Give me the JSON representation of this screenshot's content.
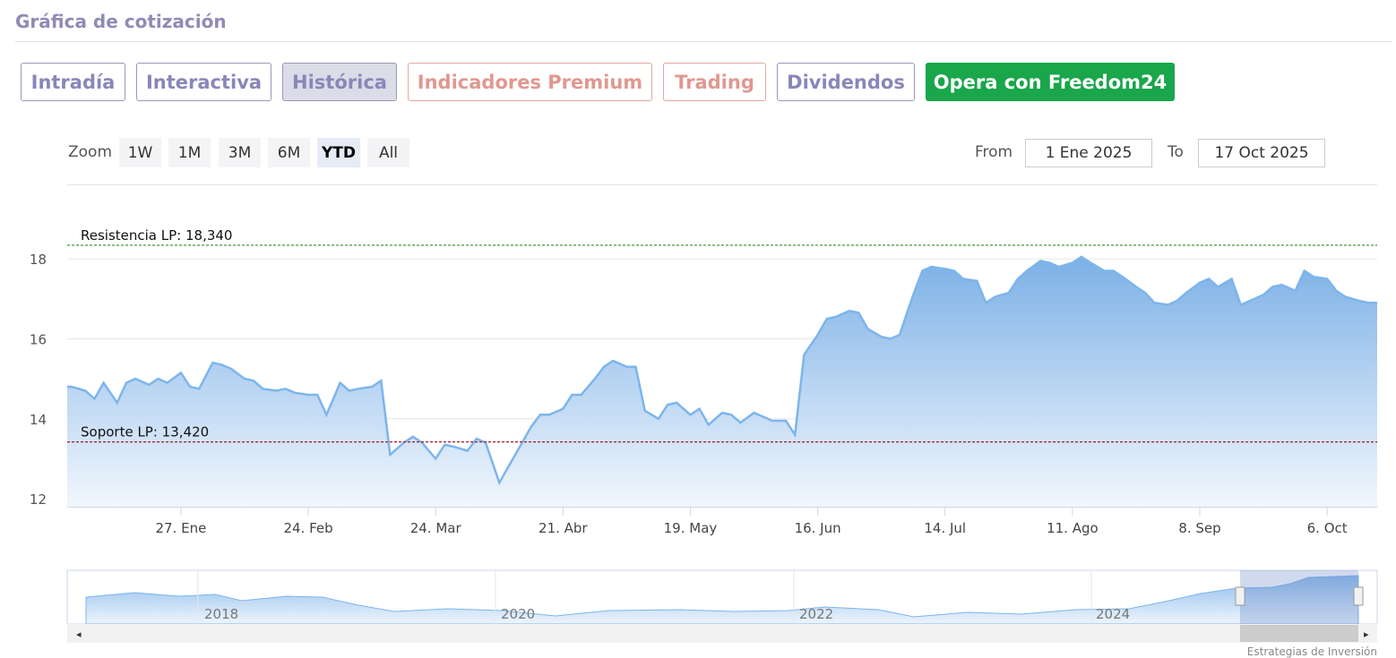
{
  "header": {
    "title": "Gráfica de cotización"
  },
  "tabs": [
    "Intradía",
    "Interactiva",
    "Histórica",
    "Indicadores Premium",
    "Trading",
    "Dividendos",
    "Opera con Freedom24"
  ],
  "zoom": {
    "label": "Zoom",
    "buttons": [
      "1W",
      "1M",
      "3M",
      "6M",
      "YTD",
      "All"
    ]
  },
  "range": {
    "from_label": "From",
    "from": "1 Ene 2025",
    "to_label": "To",
    "to": "17 Oct 2025"
  },
  "navigator": {
    "labels": [
      "2018",
      "2020",
      "2022",
      "2024"
    ]
  },
  "credit": "Estrategias de Inversión",
  "chart_data": {
    "type": "area",
    "color": "#7cb5ec",
    "x": [
      "2025-01-02",
      "2025-01-03",
      "2025-01-06",
      "2025-01-08",
      "2025-01-10",
      "2025-01-13",
      "2025-01-15",
      "2025-01-17",
      "2025-01-20",
      "2025-01-22",
      "2025-01-24",
      "2025-01-27",
      "2025-01-29",
      "2025-01-31",
      "2025-02-03",
      "2025-02-05",
      "2025-02-07",
      "2025-02-10",
      "2025-02-12",
      "2025-02-14",
      "2025-02-17",
      "2025-02-19",
      "2025-02-21",
      "2025-02-24",
      "2025-02-26",
      "2025-02-28",
      "2025-03-03",
      "2025-03-05",
      "2025-03-07",
      "2025-03-10",
      "2025-03-12",
      "2025-03-14",
      "2025-03-17",
      "2025-03-19",
      "2025-03-21",
      "2025-03-24",
      "2025-03-26",
      "2025-03-28",
      "2025-03-31",
      "2025-04-02",
      "2025-04-04",
      "2025-04-07",
      "2025-04-09",
      "2025-04-11",
      "2025-04-14",
      "2025-04-16",
      "2025-04-18",
      "2025-04-21",
      "2025-04-23",
      "2025-04-25",
      "2025-04-28",
      "2025-04-30",
      "2025-05-02",
      "2025-05-05",
      "2025-05-07",
      "2025-05-09",
      "2025-05-12",
      "2025-05-14",
      "2025-05-16",
      "2025-05-19",
      "2025-05-21",
      "2025-05-23",
      "2025-05-26",
      "2025-05-28",
      "2025-05-30",
      "2025-06-02",
      "2025-06-04",
      "2025-06-06",
      "2025-06-09",
      "2025-06-11",
      "2025-06-13",
      "2025-06-16",
      "2025-06-18",
      "2025-06-20",
      "2025-06-23",
      "2025-06-25",
      "2025-06-27",
      "2025-06-30",
      "2025-07-02",
      "2025-07-04",
      "2025-07-07",
      "2025-07-09",
      "2025-07-11",
      "2025-07-14",
      "2025-07-16",
      "2025-07-18",
      "2025-07-21",
      "2025-07-23",
      "2025-07-25",
      "2025-07-28",
      "2025-07-30",
      "2025-08-01",
      "2025-08-04",
      "2025-08-06",
      "2025-08-08",
      "2025-08-11",
      "2025-08-13",
      "2025-08-15",
      "2025-08-18",
      "2025-08-20",
      "2025-08-22",
      "2025-08-25",
      "2025-08-27",
      "2025-08-29",
      "2025-09-01",
      "2025-09-03",
      "2025-09-05",
      "2025-09-08",
      "2025-09-10",
      "2025-09-12",
      "2025-09-15",
      "2025-09-17",
      "2025-09-19",
      "2025-09-22",
      "2025-09-24",
      "2025-09-26",
      "2025-09-29",
      "2025-10-01",
      "2025-10-03",
      "2025-10-06",
      "2025-10-08",
      "2025-10-10",
      "2025-10-13",
      "2025-10-15",
      "2025-10-17"
    ],
    "values": [
      14.8,
      14.8,
      14.7,
      14.5,
      14.9,
      14.4,
      14.9,
      15.0,
      14.85,
      15.0,
      14.9,
      15.15,
      14.8,
      14.75,
      15.4,
      15.35,
      15.25,
      15.0,
      14.95,
      14.75,
      14.7,
      14.75,
      14.65,
      14.6,
      14.6,
      14.1,
      14.9,
      14.7,
      14.75,
      14.8,
      14.95,
      13.1,
      13.4,
      13.55,
      13.4,
      13.0,
      13.35,
      13.3,
      13.2,
      13.5,
      13.4,
      12.4,
      12.8,
      13.2,
      13.8,
      14.1,
      14.1,
      14.25,
      14.6,
      14.6,
      15.0,
      15.3,
      15.45,
      15.3,
      15.3,
      14.2,
      14.0,
      14.35,
      14.4,
      14.1,
      14.25,
      13.85,
      14.15,
      14.1,
      13.9,
      14.15,
      14.05,
      13.95,
      13.95,
      13.6,
      15.6,
      16.1,
      16.5,
      16.55,
      16.7,
      16.65,
      16.25,
      16.05,
      16.0,
      16.1,
      17.1,
      17.7,
      17.8,
      17.75,
      17.7,
      17.5,
      17.45,
      16.9,
      17.05,
      17.15,
      17.5,
      17.7,
      17.95,
      17.9,
      17.8,
      17.9,
      18.05,
      17.9,
      17.7,
      17.7,
      17.55,
      17.3,
      17.15,
      16.9,
      16.85,
      16.95,
      17.15,
      17.4,
      17.5,
      17.3,
      17.5,
      16.85,
      16.95,
      17.1,
      17.3,
      17.35,
      17.2,
      17.7,
      17.55,
      17.5,
      17.2,
      17.05,
      16.95,
      16.9,
      16.9
    ],
    "xlim": [
      "2025-01-02",
      "2025-10-17"
    ],
    "xticks": [
      {
        "value": "2025-01-27",
        "label": "27. Ene"
      },
      {
        "value": "2025-02-24",
        "label": "24. Feb"
      },
      {
        "value": "2025-03-24",
        "label": "24. Mar"
      },
      {
        "value": "2025-04-21",
        "label": "21. Abr"
      },
      {
        "value": "2025-05-19",
        "label": "19. May"
      },
      {
        "value": "2025-06-16",
        "label": "16. Jun"
      },
      {
        "value": "2025-07-14",
        "label": "14. Jul"
      },
      {
        "value": "2025-08-11",
        "label": "11. Ago"
      },
      {
        "value": "2025-09-08",
        "label": "8. Sep"
      },
      {
        "value": "2025-10-06",
        "label": "6. Oct"
      }
    ],
    "ylim": [
      11.8,
      19.1
    ],
    "yticks": [
      12,
      14,
      16,
      18
    ],
    "grid": true,
    "annotations": [
      {
        "label": "Resistencia LP: 18,340",
        "value": 18.34,
        "color": "#2e8b2e"
      },
      {
        "label": "Soporte LP: 13,420",
        "value": 13.42,
        "color": "#a01c2c"
      }
    ]
  }
}
